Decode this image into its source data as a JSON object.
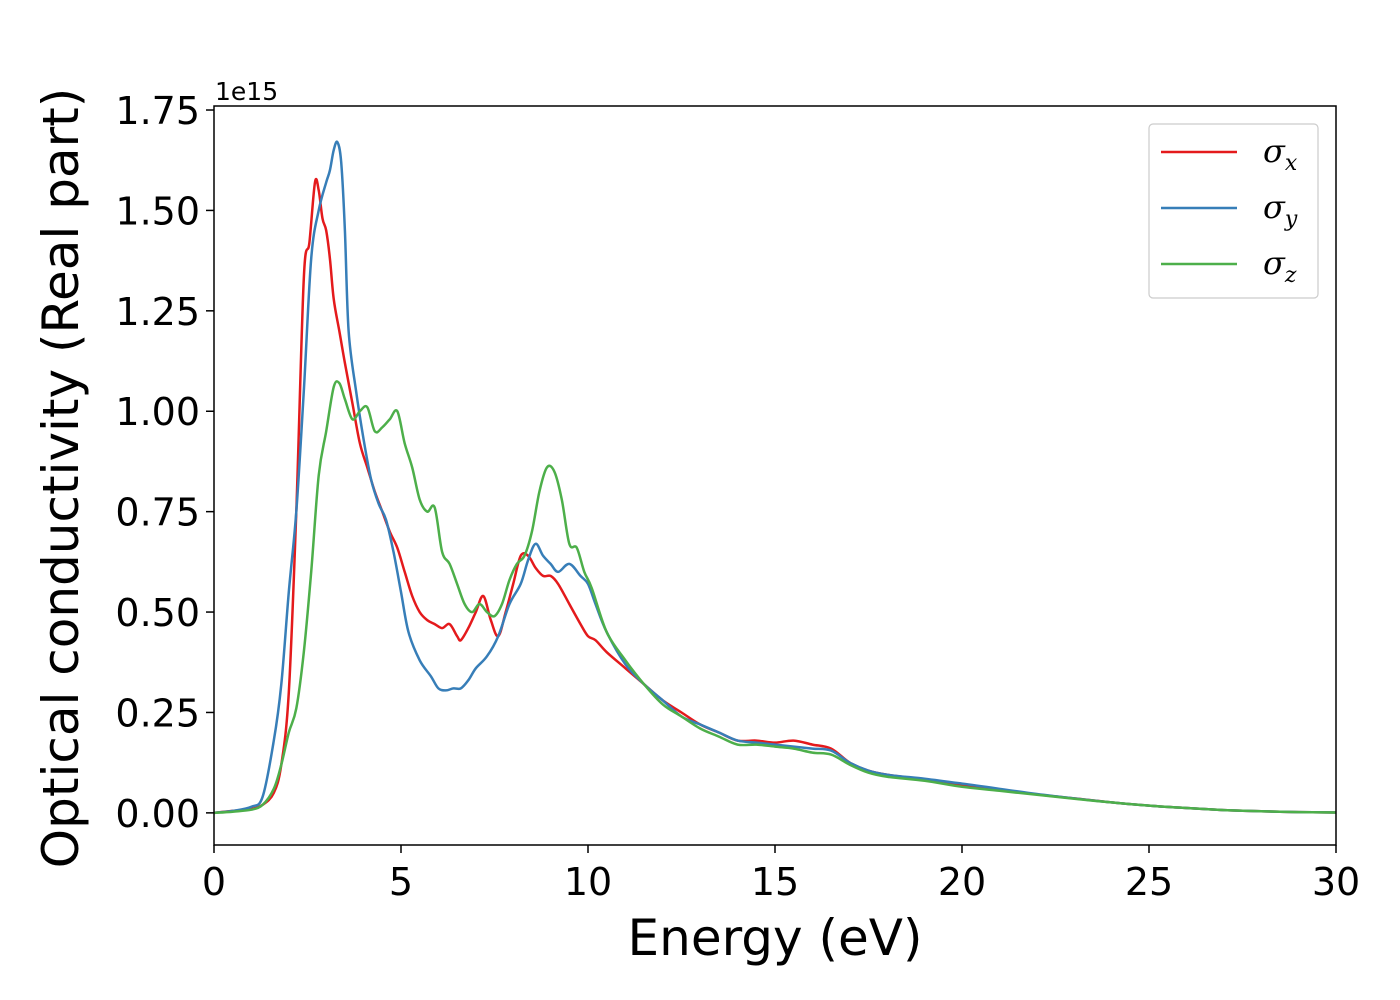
{
  "chart_data": {
    "type": "line",
    "title": "",
    "xlabel": "Energy (eV)",
    "ylabel": "Optical conductivity (Real part)",
    "y_offset_label": "1e15",
    "xlim": [
      0,
      30
    ],
    "ylim": [
      -0.08,
      1.76
    ],
    "xticks": [
      0,
      5,
      10,
      15,
      20,
      25,
      30
    ],
    "xtick_labels": [
      "0",
      "5",
      "10",
      "15",
      "20",
      "25",
      "30"
    ],
    "yticks": [
      0.0,
      0.25,
      0.5,
      0.75,
      1.0,
      1.25,
      1.5,
      1.75
    ],
    "ytick_labels": [
      "0.00",
      "0.25",
      "0.50",
      "0.75",
      "1.00",
      "1.25",
      "1.50",
      "1.75"
    ],
    "grid": false,
    "legend_position": "upper right",
    "series": [
      {
        "name": "σx",
        "symbol": "σ",
        "subscript": "x",
        "color": "#e41a1c",
        "x": [
          0,
          0.5,
          1.0,
          1.3,
          1.6,
          1.8,
          2.0,
          2.2,
          2.4,
          2.55,
          2.7,
          2.8,
          2.9,
          3.0,
          3.1,
          3.2,
          3.35,
          3.5,
          3.7,
          3.9,
          4.1,
          4.3,
          4.5,
          4.7,
          4.9,
          5.1,
          5.3,
          5.5,
          5.7,
          5.9,
          6.1,
          6.3,
          6.5,
          6.6,
          6.8,
          7.0,
          7.2,
          7.4,
          7.6,
          7.8,
          8.0,
          8.2,
          8.4,
          8.6,
          8.8,
          9.0,
          9.2,
          9.5,
          9.8,
          10.0,
          10.2,
          10.5,
          11.0,
          11.5,
          12.0,
          12.5,
          13.0,
          13.5,
          14.0,
          14.5,
          15.0,
          15.5,
          16.0,
          16.5,
          17.0,
          17.5,
          18.0,
          19.0,
          20.0,
          21.0,
          22.0,
          23.0,
          24.0,
          25.0,
          26.0,
          27.0,
          28.0,
          29.0,
          30.0
        ],
        "y": [
          0.0,
          0.005,
          0.01,
          0.02,
          0.05,
          0.12,
          0.3,
          0.75,
          1.33,
          1.42,
          1.57,
          1.55,
          1.48,
          1.45,
          1.38,
          1.28,
          1.2,
          1.12,
          1.02,
          0.92,
          0.86,
          0.8,
          0.75,
          0.7,
          0.66,
          0.6,
          0.54,
          0.5,
          0.48,
          0.47,
          0.46,
          0.47,
          0.44,
          0.43,
          0.46,
          0.5,
          0.54,
          0.48,
          0.44,
          0.5,
          0.57,
          0.64,
          0.64,
          0.61,
          0.59,
          0.59,
          0.57,
          0.52,
          0.47,
          0.44,
          0.43,
          0.4,
          0.36,
          0.32,
          0.28,
          0.25,
          0.22,
          0.2,
          0.18,
          0.18,
          0.175,
          0.18,
          0.17,
          0.16,
          0.125,
          0.105,
          0.095,
          0.083,
          0.07,
          0.058,
          0.046,
          0.036,
          0.026,
          0.018,
          0.012,
          0.007,
          0.004,
          0.002,
          0.001
        ]
      },
      {
        "name": "σy",
        "symbol": "σ",
        "subscript": "y",
        "color": "#377eb8",
        "x": [
          0,
          0.5,
          1.0,
          1.3,
          1.6,
          1.8,
          2.0,
          2.2,
          2.4,
          2.6,
          2.8,
          3.0,
          3.1,
          3.2,
          3.3,
          3.4,
          3.5,
          3.6,
          3.8,
          4.0,
          4.2,
          4.4,
          4.6,
          4.8,
          5.0,
          5.2,
          5.5,
          5.8,
          6.0,
          6.2,
          6.4,
          6.6,
          6.8,
          7.0,
          7.3,
          7.6,
          7.9,
          8.2,
          8.4,
          8.6,
          8.8,
          9.0,
          9.2,
          9.5,
          9.8,
          10.0,
          10.2,
          10.5,
          11.0,
          11.5,
          12.0,
          12.5,
          13.0,
          13.5,
          14.0,
          14.5,
          15.0,
          15.5,
          16.0,
          16.5,
          17.0,
          17.5,
          18.0,
          19.0,
          20.0,
          21.0,
          22.0,
          23.0,
          24.0,
          25.0,
          26.0,
          27.0,
          28.0,
          29.0,
          30.0
        ],
        "y": [
          0.0,
          0.005,
          0.015,
          0.04,
          0.18,
          0.32,
          0.55,
          0.75,
          1.05,
          1.38,
          1.5,
          1.57,
          1.6,
          1.65,
          1.67,
          1.62,
          1.45,
          1.2,
          1.05,
          0.93,
          0.83,
          0.77,
          0.73,
          0.65,
          0.55,
          0.45,
          0.38,
          0.34,
          0.31,
          0.305,
          0.31,
          0.31,
          0.33,
          0.36,
          0.39,
          0.44,
          0.52,
          0.57,
          0.63,
          0.67,
          0.64,
          0.62,
          0.6,
          0.62,
          0.59,
          0.57,
          0.52,
          0.45,
          0.37,
          0.32,
          0.28,
          0.24,
          0.22,
          0.2,
          0.18,
          0.175,
          0.17,
          0.165,
          0.16,
          0.155,
          0.125,
          0.105,
          0.095,
          0.085,
          0.073,
          0.06,
          0.047,
          0.036,
          0.026,
          0.018,
          0.012,
          0.007,
          0.004,
          0.002,
          0.001
        ]
      },
      {
        "name": "σz",
        "symbol": "σ",
        "subscript": "z",
        "color": "#4daf4a",
        "x": [
          0,
          0.5,
          1.0,
          1.3,
          1.6,
          1.8,
          2.0,
          2.2,
          2.4,
          2.6,
          2.8,
          3.0,
          3.2,
          3.35,
          3.5,
          3.7,
          3.9,
          4.1,
          4.3,
          4.5,
          4.7,
          4.9,
          5.1,
          5.3,
          5.5,
          5.7,
          5.9,
          6.1,
          6.3,
          6.5,
          6.7,
          6.9,
          7.1,
          7.3,
          7.5,
          7.7,
          7.9,
          8.1,
          8.3,
          8.5,
          8.7,
          8.9,
          9.1,
          9.3,
          9.5,
          9.7,
          9.9,
          10.1,
          10.5,
          11.0,
          11.5,
          12.0,
          12.5,
          13.0,
          13.5,
          14.0,
          14.5,
          15.0,
          15.5,
          16.0,
          16.5,
          17.0,
          17.5,
          18.0,
          19.0,
          20.0,
          21.0,
          22.0,
          23.0,
          24.0,
          25.0,
          26.0,
          27.0,
          28.0,
          29.0,
          30.0
        ],
        "y": [
          0.0,
          0.003,
          0.008,
          0.02,
          0.06,
          0.12,
          0.2,
          0.26,
          0.4,
          0.6,
          0.84,
          0.95,
          1.06,
          1.07,
          1.03,
          0.98,
          1.0,
          1.01,
          0.95,
          0.96,
          0.98,
          1.0,
          0.92,
          0.86,
          0.78,
          0.75,
          0.76,
          0.65,
          0.62,
          0.57,
          0.52,
          0.5,
          0.52,
          0.5,
          0.49,
          0.52,
          0.58,
          0.62,
          0.64,
          0.7,
          0.8,
          0.86,
          0.85,
          0.78,
          0.67,
          0.66,
          0.6,
          0.56,
          0.45,
          0.38,
          0.32,
          0.27,
          0.24,
          0.21,
          0.19,
          0.17,
          0.17,
          0.165,
          0.16,
          0.15,
          0.145,
          0.12,
          0.1,
          0.09,
          0.08,
          0.065,
          0.055,
          0.045,
          0.035,
          0.026,
          0.018,
          0.012,
          0.007,
          0.004,
          0.002,
          0.001
        ]
      }
    ]
  }
}
